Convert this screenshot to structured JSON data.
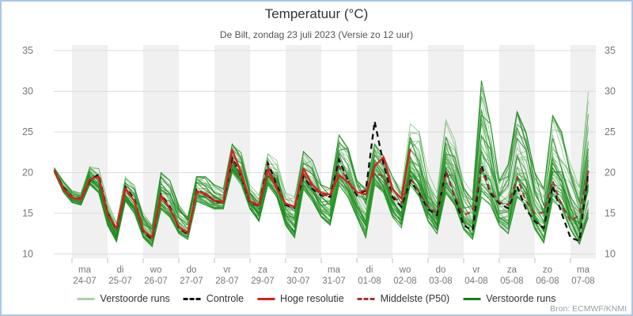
{
  "header": {
    "title": "Temperatuur (°C)",
    "subtitle": "De Bilt, zondag 23 juli 2023 (Versie zo 12 uur)"
  },
  "source": {
    "label": "Bron: ECMWF/KNMI"
  },
  "legend": {
    "items": [
      {
        "label": "Verstoorde runs",
        "color": "#a8d2a8",
        "style": "solid"
      },
      {
        "label": "Controle",
        "color": "#111111",
        "style": "dashed"
      },
      {
        "label": "Hoge resolutie",
        "color": "#d81f1f",
        "style": "solid"
      },
      {
        "label": "Middelste (P50)",
        "color": "#a03535",
        "style": "dashed"
      },
      {
        "label": "Verstoorde runs",
        "color": "#1a7d1a",
        "style": "solid"
      }
    ]
  },
  "chart_data": {
    "type": "line",
    "title": "Temperatuur (°C)",
    "subtitle": "De Bilt, zondag 23 juli 2023 (Versie zo 12 uur)",
    "ylabel": "",
    "ylim": [
      10,
      35
    ],
    "yticks": [
      10,
      15,
      20,
      25,
      30,
      35
    ],
    "grid": "horizontal",
    "background_bands": "alternating day stripes, gray on even days starting ma 24-07",
    "x_axis": {
      "start": "2023-07-23 12:00",
      "step_hours": 6,
      "points": 61,
      "tick_labels": [
        {
          "day": "ma",
          "date": "24-07"
        },
        {
          "day": "di",
          "date": "25-07"
        },
        {
          "day": "wo",
          "date": "26-07"
        },
        {
          "day": "do",
          "date": "27-07"
        },
        {
          "day": "vr",
          "date": "28-07"
        },
        {
          "day": "za",
          "date": "29-07"
        },
        {
          "day": "zo",
          "date": "30-07"
        },
        {
          "day": "ma",
          "date": "31-07"
        },
        {
          "day": "di",
          "date": "01-08"
        },
        {
          "day": "wo",
          "date": "02-08"
        },
        {
          "day": "do",
          "date": "03-08"
        },
        {
          "day": "vr",
          "date": "04-08"
        },
        {
          "day": "za",
          "date": "05-08"
        },
        {
          "day": "zo",
          "date": "06-08"
        },
        {
          "day": "ma",
          "date": "07-08"
        }
      ]
    },
    "colors": {
      "ensemble_light": "#2e9b2e",
      "ensemble_dark": "#1a7d1a",
      "control": "#111111",
      "hres": "#d81f1f",
      "p50": "#a03535",
      "band": "#f0f0f0",
      "grid": "#dcdcdc",
      "tick": "#b8bec6",
      "tick_text": "#777777"
    },
    "series": {
      "control": {
        "name": "Controle",
        "values": [
          20.3,
          18.2,
          17.0,
          16.8,
          19.0,
          19.8,
          15.0,
          13.0,
          18.2,
          16.8,
          12.8,
          11.8,
          17.3,
          15.8,
          13.2,
          12.4,
          17.9,
          17.3,
          16.5,
          16.3,
          21.8,
          19.5,
          16.3,
          15.9,
          21.2,
          18.5,
          16.0,
          15.7,
          19.5,
          18.0,
          17.2,
          17.0,
          21.6,
          19.0,
          17.2,
          17.8,
          26.3,
          21.0,
          17.0,
          15.8,
          19.0,
          17.5,
          15.5,
          14.8,
          20.2,
          17.0,
          13.5,
          12.9,
          20.9,
          17.5,
          16.2,
          15.6,
          18.3,
          15.5,
          14.0,
          13.2,
          18.4,
          15.0,
          12.0,
          11.6,
          20.2
        ]
      },
      "hres": {
        "name": "Hoge resolutie",
        "values": [
          20.3,
          18.0,
          16.9,
          16.7,
          19.2,
          19.5,
          14.8,
          13.2,
          18.1,
          16.5,
          12.9,
          12.0,
          17.2,
          15.5,
          13.4,
          12.6,
          17.7,
          17.4,
          16.6,
          16.4,
          22.8,
          20.0,
          16.5,
          16.0,
          20.3,
          18.0,
          16.2,
          15.8,
          20.5,
          18.5,
          17.5,
          17.3,
          19.7,
          18.8,
          17.6,
          17.3,
          20.8,
          21.9,
          18.0,
          16.8,
          22.9
        ]
      },
      "p50": {
        "name": "Middelste (P50)",
        "values": [
          20.3,
          18.1,
          17.0,
          16.8,
          19.2,
          19.5,
          14.9,
          13.1,
          17.8,
          16.6,
          12.9,
          12.0,
          17.0,
          15.6,
          13.3,
          12.5,
          17.6,
          17.2,
          16.5,
          16.3,
          21.5,
          19.6,
          16.4,
          15.9,
          20.8,
          18.3,
          16.1,
          15.8,
          19.8,
          18.2,
          17.3,
          17.1,
          20.8,
          19.0,
          17.5,
          17.9,
          20.0,
          19.5,
          17.2,
          16.2,
          19.3,
          17.6,
          15.8,
          15.0,
          20.0,
          17.2,
          14.8,
          15.2,
          20.3,
          17.8,
          16.4,
          16.0,
          19.4,
          16.5,
          15.0,
          15.1,
          19.0,
          16.0,
          14.0,
          14.8,
          20.3
        ]
      },
      "ensemble": {
        "name": "Verstoorde runs",
        "count": 50,
        "seed": 20230723,
        "min": [
          20.0,
          17.6,
          16.3,
          16.0,
          18.5,
          17.5,
          13.5,
          11.5,
          16.5,
          15.0,
          12.0,
          10.9,
          15.5,
          14.5,
          12.5,
          11.8,
          16.5,
          16.0,
          15.5,
          15.5,
          20.0,
          18.5,
          15.5,
          14.0,
          18.5,
          17.0,
          13.5,
          12.0,
          18.0,
          16.5,
          14.5,
          13.5,
          18.5,
          17.0,
          14.5,
          12.0,
          18.5,
          17.5,
          14.5,
          13.2,
          18.5,
          17.0,
          14.0,
          12.5,
          17.5,
          16.0,
          13.0,
          11.8,
          17.0,
          16.0,
          13.5,
          12.5,
          17.0,
          16.0,
          13.0,
          11.3,
          16.5,
          15.5,
          13.0,
          11.2,
          14.5
        ],
        "max": [
          20.6,
          19.0,
          17.8,
          17.5,
          21.0,
          20.5,
          16.5,
          13.8,
          19.5,
          18.5,
          15.0,
          13.5,
          20.0,
          19.0,
          16.0,
          14.5,
          19.5,
          19.5,
          18.5,
          18.0,
          23.5,
          22.5,
          18.5,
          17.5,
          22.3,
          21.5,
          17.5,
          17.0,
          22.6,
          21.5,
          18.5,
          18.0,
          24.6,
          23.0,
          19.0,
          18.0,
          23.5,
          22.0,
          19.5,
          18.0,
          26.0,
          25.0,
          20.0,
          17.5,
          26.5,
          24.0,
          19.0,
          17.5,
          31.3,
          26.0,
          19.0,
          21.0,
          27.5,
          25.0,
          20.0,
          18.0,
          27.0,
          25.0,
          21.0,
          19.0,
          30.1
        ]
      }
    }
  }
}
